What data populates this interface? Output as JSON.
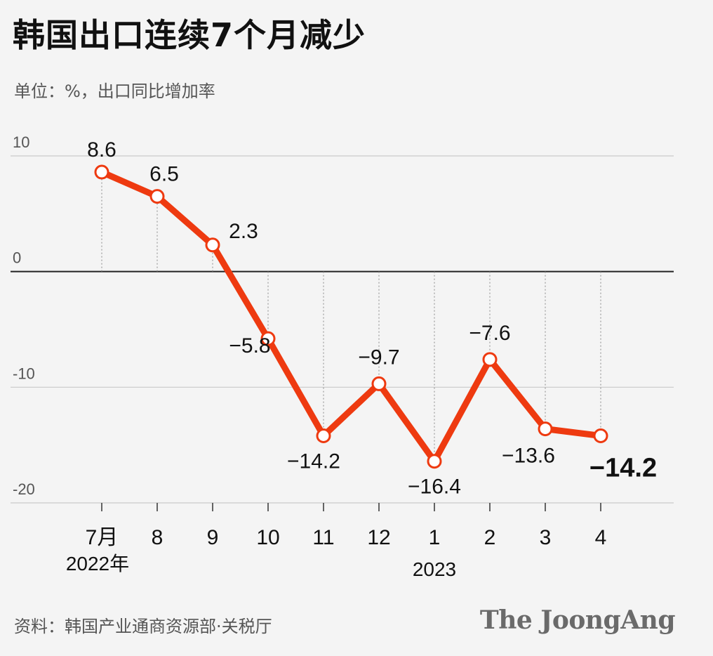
{
  "header": {
    "title": "韩国出口连续7个月减少",
    "subtitle": "单位：%，出口同比增加率"
  },
  "footer": {
    "source": "资料：韩国产业通商资源部·关税厅",
    "brand": "The JoongAng"
  },
  "colors": {
    "line": "#ee3a10",
    "marker_fill": "#ffffff",
    "grid": "#c9c9c9",
    "zero_line": "#222222",
    "background": "#f4f4f4"
  },
  "chart_data": {
    "type": "line",
    "title": "韩国出口连续7个月减少",
    "ylabel": "单位：%，出口同比增加率",
    "xlabel": "",
    "ylim": [
      -20,
      10
    ],
    "yticks": [
      10,
      0,
      -10,
      -20
    ],
    "ytick_labels": [
      "10",
      "0",
      "-10",
      "-20"
    ],
    "grid": true,
    "categories": [
      "7月",
      "8",
      "9",
      "10",
      "11",
      "12",
      "1",
      "2",
      "3",
      "4"
    ],
    "year_labels": [
      {
        "text": "2022年",
        "at_index": 0
      },
      {
        "text": "2023",
        "at_index": 6
      }
    ],
    "series": [
      {
        "values": [
          8.6,
          6.5,
          2.3,
          -5.8,
          -14.2,
          -9.7,
          -16.4,
          -7.6,
          -13.6,
          -14.2
        ],
        "data_labels": [
          "8.6",
          "6.5",
          "2.3",
          "−5.8",
          "−14.2",
          "−9.7",
          "−16.4",
          "−7.6",
          "−13.6",
          "−14.2"
        ]
      }
    ]
  }
}
